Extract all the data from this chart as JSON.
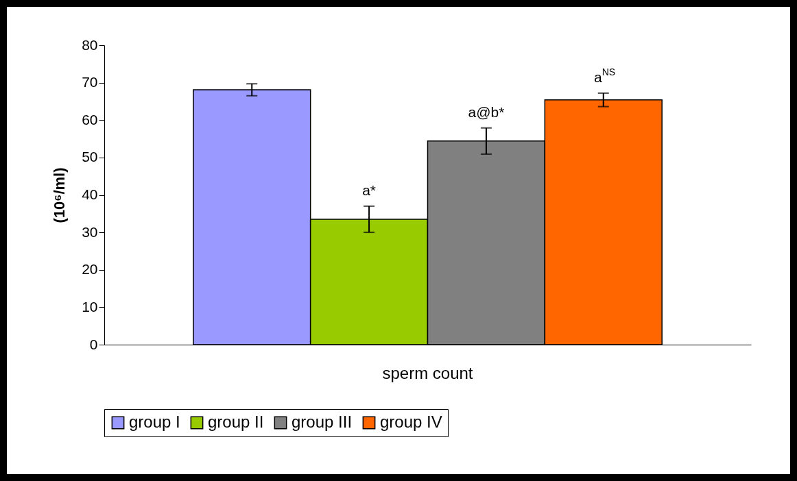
{
  "chart_data": {
    "type": "bar",
    "ylabel": "(10⁶/ml)",
    "categories": [
      "sperm count"
    ],
    "ylim": [
      0,
      80
    ],
    "yticks": [
      0,
      10,
      20,
      30,
      40,
      50,
      60,
      70,
      80
    ],
    "legend": "bottom",
    "series": [
      {
        "name": "group I",
        "color": "#9999ff",
        "values": [
          68.1
        ],
        "errors": [
          1.6
        ]
      },
      {
        "name": "group II",
        "color": "#99cc00",
        "values": [
          33.5
        ],
        "errors": [
          3.5
        ],
        "value_labels": [
          "a*"
        ]
      },
      {
        "name": "group III",
        "color": "#808080",
        "values": [
          54.4
        ],
        "errors": [
          3.5
        ],
        "value_labels": [
          "a@b*"
        ]
      },
      {
        "name": "group IV",
        "color": "#ff6600",
        "values": [
          65.4
        ],
        "errors": [
          1.8
        ],
        "value_labels": [
          "a$^{NS}$"
        ]
      }
    ]
  }
}
